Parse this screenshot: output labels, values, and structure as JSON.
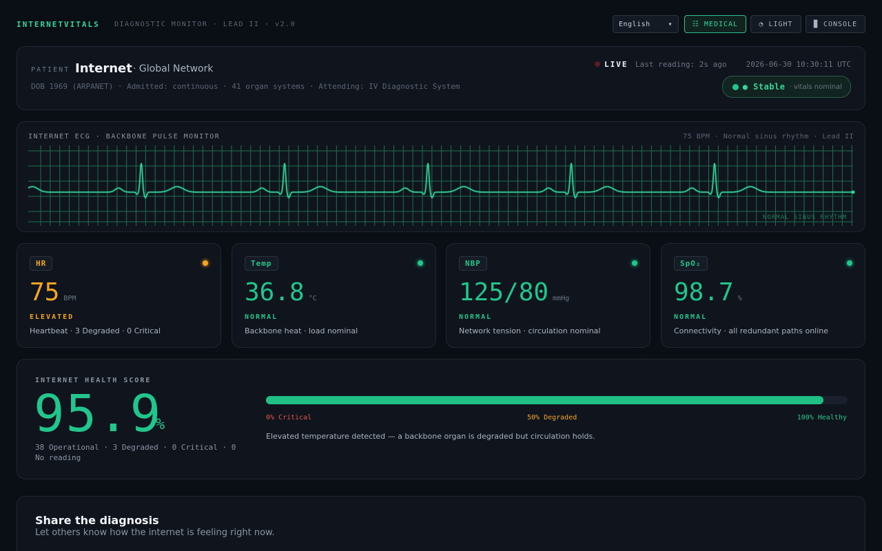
{
  "header": {
    "brand": "INTERNETVITALS",
    "subtitle": "DIAGNOSTIC MONITOR · LEAD II · v2.0",
    "language": "English",
    "buttons": [
      "☷ MEDICAL",
      "◔ LIGHT",
      "▉ CONSOLE"
    ]
  },
  "patient": {
    "label": "PATIENT",
    "name": "Internet",
    "group": "· Global Network",
    "details": "DOB 1969 (ARPANET) · Admitted: continuous · 41 organ systems · Attending: IV Diagnostic System",
    "live": "LIVE",
    "last_reading": "Last reading: 2s ago",
    "timestamp": "2026-06-30 10:30:11 UTC",
    "status": "● Stable",
    "status_note": "· vitals nominal"
  },
  "ecg": {
    "title": "INTERNET ECG · BACKBONE PULSE MONITOR",
    "info": "75 BPM · Normal sinus rhythm · Lead II",
    "rhythm": "NORMAL SINUS RHYTHM"
  },
  "vitals": [
    {
      "label": "HR",
      "value": "75",
      "unit": "BPM",
      "state": "ELEVATED",
      "note": "Heartbeat · 3 Degraded · 0 Critical",
      "color": "#f5a524"
    },
    {
      "label": "Temp",
      "value": "36.8",
      "unit": "°C",
      "state": "NORMAL",
      "note": "Backbone heat · load nominal",
      "color": "#22c58b"
    },
    {
      "label": "NBP",
      "value": "125/80",
      "unit": "mmHg",
      "state": "NORMAL",
      "note": "Network tension · circulation nominal",
      "color": "#22c58b"
    },
    {
      "label": "SpO₂",
      "value": "98.7",
      "unit": "%",
      "state": "NORMAL",
      "note": "Connectivity · all redundant paths online",
      "color": "#22c58b"
    }
  ],
  "health": {
    "label": "INTERNET HEALTH SCORE",
    "score": 95.9,
    "unit": "%",
    "breakdown": "38 Operational · 3 Degraded · 0 Critical · 0 No reading",
    "scale": [
      "0% Critical",
      "50% Degraded",
      "100% Healthy"
    ],
    "message": "Elevated temperature detected — a backbone organ is degraded but circulation holds."
  },
  "share": {
    "title": "Share the diagnosis",
    "subtitle": "Let others know how the internet is feeling right now."
  }
}
